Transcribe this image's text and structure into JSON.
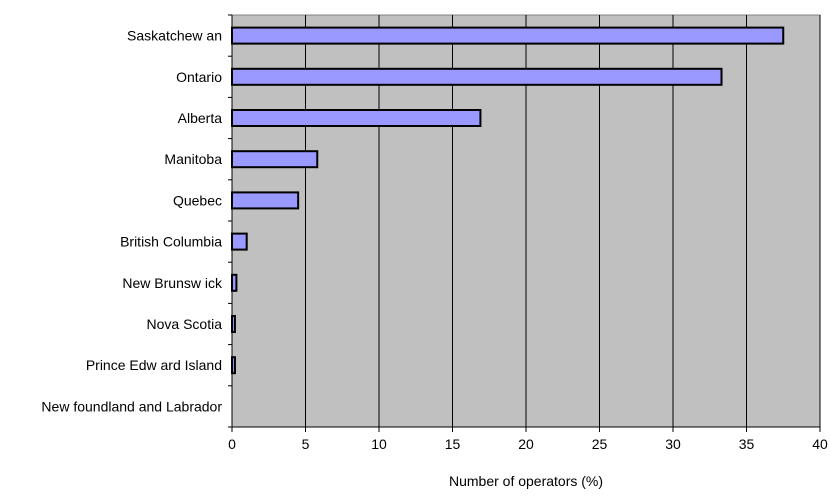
{
  "chart_data": {
    "type": "bar",
    "orientation": "horizontal",
    "categories": [
      "Saskatchew an",
      "Ontario",
      "Alberta",
      "Manitoba",
      "Quebec",
      "British Columbia",
      "New Brunsw ick",
      "Nova Scotia",
      "Prince Edw ard Island",
      "New foundland and Labrador"
    ],
    "values": [
      37.5,
      33.3,
      16.9,
      5.8,
      4.5,
      1.0,
      0.3,
      0.2,
      0.2,
      0.0
    ],
    "title": "",
    "xlabel": "Number of operators (%)",
    "ylabel": "",
    "xlim": [
      0,
      40
    ],
    "xticks": [
      0,
      5,
      10,
      15,
      20,
      25,
      30,
      35,
      40
    ],
    "grid": "vertical",
    "legend": "none",
    "colors": {
      "bar_fill": "#9999ff",
      "bar_stroke": "#000000",
      "plot_background": "#c0c0c0",
      "gridline": "#000000"
    }
  }
}
